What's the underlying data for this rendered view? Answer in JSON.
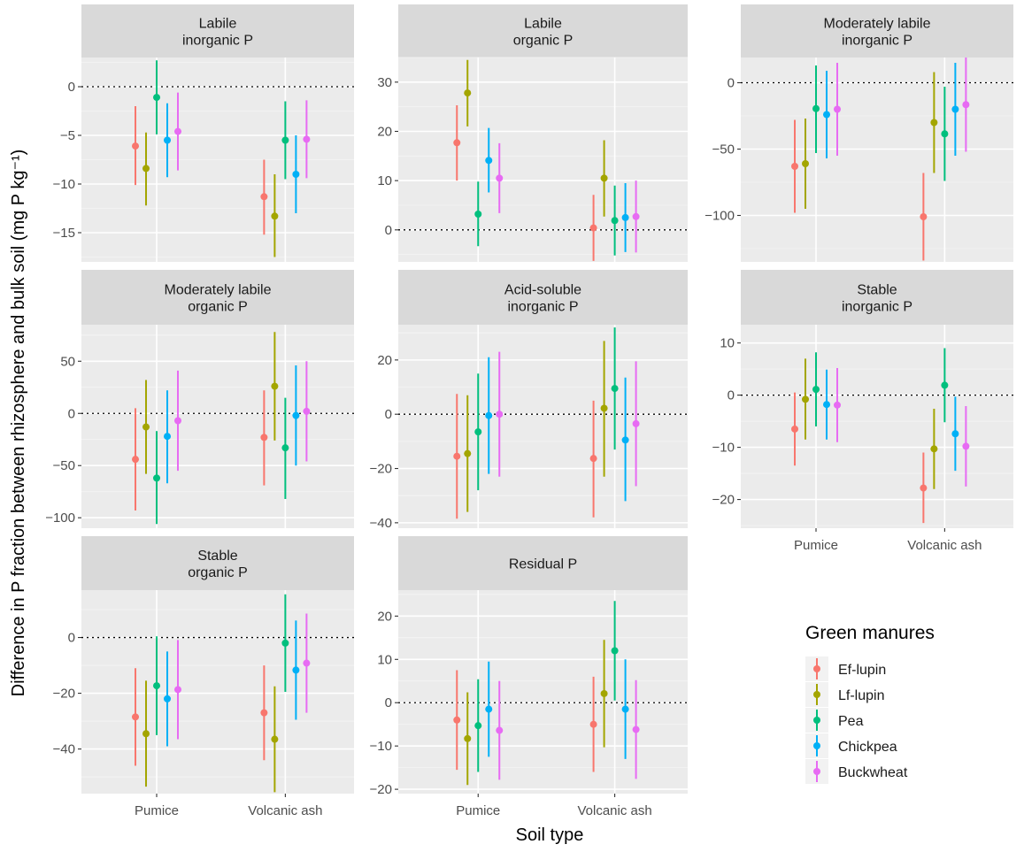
{
  "chart_data": {
    "type": "errorbar-facets",
    "xlabel": "Soil type",
    "ylabel": "Difference in P fraction between rhizosphere and bulk soil (mg P  kg⁻¹)",
    "categories": [
      "Pumice",
      "Volcanic ash"
    ],
    "legend": {
      "title": "Green manures",
      "position": "bottom-right",
      "entries": [
        {
          "name": "Ef-lupin",
          "color": "#F8766D"
        },
        {
          "name": "Lf-lupin",
          "color": "#A3A500"
        },
        {
          "name": "Pea",
          "color": "#00BF7D"
        },
        {
          "name": "Chickpea",
          "color": "#00B0F6"
        },
        {
          "name": "Buckwheat",
          "color": "#E76BF3"
        }
      ]
    },
    "panels": [
      {
        "title": [
          "Labile",
          "inorganic P"
        ],
        "ylim": [
          -18,
          3
        ],
        "yticks": [
          0,
          -5,
          -10,
          -15
        ],
        "series": [
          {
            "name": "Ef-lupin",
            "mean": [
              -6.1,
              -11.3
            ],
            "lo": [
              -10.1,
              -15.2
            ],
            "hi": [
              -2,
              -7.5
            ]
          },
          {
            "name": "Lf-lupin",
            "mean": [
              -8.4,
              -13.3
            ],
            "lo": [
              -12.2,
              -17.5
            ],
            "hi": [
              -4.7,
              -9
            ]
          },
          {
            "name": "Pea",
            "mean": [
              -1.1,
              -5.5
            ],
            "lo": [
              -4.9,
              -9.5
            ],
            "hi": [
              2.7,
              -1.5
            ]
          },
          {
            "name": "Chickpea",
            "mean": [
              -5.5,
              -9
            ],
            "lo": [
              -9.3,
              -13
            ],
            "hi": [
              -1.7,
              -5
            ]
          },
          {
            "name": "Buckwheat",
            "mean": [
              -4.6,
              -5.4
            ],
            "lo": [
              -8.6,
              -9.4
            ],
            "hi": [
              -0.6,
              -1.4
            ]
          }
        ]
      },
      {
        "title": [
          "Labile",
          "organic P"
        ],
        "ylim": [
          -6.5,
          35
        ],
        "yticks": [
          30,
          20,
          10,
          0
        ],
        "series": [
          {
            "name": "Ef-lupin",
            "mean": [
              17.7,
              0.4
            ],
            "lo": [
              10,
              -6.3
            ],
            "hi": [
              25.3,
              7.1
            ]
          },
          {
            "name": "Lf-lupin",
            "mean": [
              27.8,
              10.5
            ],
            "lo": [
              21,
              2.7
            ],
            "hi": [
              34.5,
              18.2
            ]
          },
          {
            "name": "Pea",
            "mean": [
              3.2,
              1.9
            ],
            "lo": [
              -3.3,
              -5.2
            ],
            "hi": [
              9.8,
              9
            ]
          },
          {
            "name": "Chickpea",
            "mean": [
              14.1,
              2.5
            ],
            "lo": [
              7.6,
              -4.5
            ],
            "hi": [
              20.7,
              9.5
            ]
          },
          {
            "name": "Buckwheat",
            "mean": [
              10.5,
              2.7
            ],
            "lo": [
              3.4,
              -4.6
            ],
            "hi": [
              17.6,
              10
            ]
          }
        ]
      },
      {
        "title": [
          "Moderately labile",
          "inorganic P"
        ],
        "ylim": [
          -135,
          19
        ],
        "yticks": [
          0,
          -50,
          -100
        ],
        "series": [
          {
            "name": "Ef-lupin",
            "mean": [
              -63,
              -101
            ],
            "lo": [
              -98,
              -134
            ],
            "hi": [
              -28,
              -68
            ]
          },
          {
            "name": "Lf-lupin",
            "mean": [
              -61,
              -30
            ],
            "lo": [
              -95,
              -68
            ],
            "hi": [
              -27,
              8
            ]
          },
          {
            "name": "Pea",
            "mean": [
              -19.5,
              -38.5
            ],
            "lo": [
              -53,
              -74
            ],
            "hi": [
              13,
              -3
            ]
          },
          {
            "name": "Chickpea",
            "mean": [
              -24,
              -20
            ],
            "lo": [
              -57,
              -55
            ],
            "hi": [
              9,
              15
            ]
          },
          {
            "name": "Buckwheat",
            "mean": [
              -20,
              -16.5
            ],
            "lo": [
              -55,
              -52
            ],
            "hi": [
              15,
              19
            ]
          }
        ]
      },
      {
        "title": [
          "Moderately labile",
          "organic P"
        ],
        "ylim": [
          -110,
          85
        ],
        "yticks": [
          50,
          0,
          -50,
          -100
        ],
        "series": [
          {
            "name": "Ef-lupin",
            "mean": [
              -44,
              -23
            ],
            "lo": [
              -93,
              -69
            ],
            "hi": [
              5,
              22
            ]
          },
          {
            "name": "Lf-lupin",
            "mean": [
              -13,
              26
            ],
            "lo": [
              -58,
              -26
            ],
            "hi": [
              32,
              78
            ]
          },
          {
            "name": "Pea",
            "mean": [
              -62,
              -33
            ],
            "lo": [
              -106,
              -82
            ],
            "hi": [
              -17,
              15
            ]
          },
          {
            "name": "Chickpea",
            "mean": [
              -22,
              -2
            ],
            "lo": [
              -67,
              -50
            ],
            "hi": [
              22,
              46
            ]
          },
          {
            "name": "Buckwheat",
            "mean": [
              -7,
              2
            ],
            "lo": [
              -55,
              -46
            ],
            "hi": [
              41,
              50
            ]
          }
        ]
      },
      {
        "title": [
          "Acid-soluble",
          "inorganic P"
        ],
        "ylim": [
          -42,
          33
        ],
        "yticks": [
          20,
          0,
          -20,
          -40
        ],
        "series": [
          {
            "name": "Ef-lupin",
            "mean": [
              -15.5,
              -16.3
            ],
            "lo": [
              -38.5,
              -38
            ],
            "hi": [
              7.5,
              5
            ]
          },
          {
            "name": "Lf-lupin",
            "mean": [
              -14.5,
              2.2
            ],
            "lo": [
              -36,
              -23
            ],
            "hi": [
              7,
              27
            ]
          },
          {
            "name": "Pea",
            "mean": [
              -6.5,
              9.5
            ],
            "lo": [
              -28,
              -13
            ],
            "hi": [
              15,
              32
            ]
          },
          {
            "name": "Chickpea",
            "mean": [
              -0.5,
              -9.5
            ],
            "lo": [
              -22,
              -32
            ],
            "hi": [
              21,
              13.5
            ]
          },
          {
            "name": "Buckwheat",
            "mean": [
              0,
              -3.5
            ],
            "lo": [
              -23,
              -26.5
            ],
            "hi": [
              23,
              19.5
            ]
          }
        ]
      },
      {
        "title": [
          "Stable",
          "inorganic P"
        ],
        "ylim": [
          -25.5,
          13.5
        ],
        "yticks": [
          10,
          0,
          -10,
          -20
        ],
        "series": [
          {
            "name": "Ef-lupin",
            "mean": [
              -6.5,
              -17.8
            ],
            "lo": [
              -13.5,
              -24.5
            ],
            "hi": [
              0.5,
              -11
            ]
          },
          {
            "name": "Lf-lupin",
            "mean": [
              -0.8,
              -10.3
            ],
            "lo": [
              -8.5,
              -18
            ],
            "hi": [
              7,
              -2.6
            ]
          },
          {
            "name": "Pea",
            "mean": [
              1.1,
              1.9
            ],
            "lo": [
              -6,
              -5.2
            ],
            "hi": [
              8.2,
              9
            ]
          },
          {
            "name": "Chickpea",
            "mean": [
              -1.8,
              -7.4
            ],
            "lo": [
              -8.5,
              -14.5
            ],
            "hi": [
              4.9,
              -0.3
            ]
          },
          {
            "name": "Buckwheat",
            "mean": [
              -1.9,
              -9.8
            ],
            "lo": [
              -9,
              -17.5
            ],
            "hi": [
              5.2,
              -2.1
            ]
          }
        ]
      },
      {
        "title": [
          "Stable",
          "organic P"
        ],
        "ylim": [
          -56,
          17
        ],
        "yticks": [
          0,
          -20,
          -40
        ],
        "series": [
          {
            "name": "Ef-lupin",
            "mean": [
              -28.5,
              -27
            ],
            "lo": [
              -46,
              -44
            ],
            "hi": [
              -11,
              -10
            ]
          },
          {
            "name": "Lf-lupin",
            "mean": [
              -34.5,
              -36.5
            ],
            "lo": [
              -53.5,
              -55.5
            ],
            "hi": [
              -15.5,
              -17.5
            ]
          },
          {
            "name": "Pea",
            "mean": [
              -17.3,
              -2
            ],
            "lo": [
              -35,
              -19.5
            ],
            "hi": [
              0.4,
              15.5
            ]
          },
          {
            "name": "Chickpea",
            "mean": [
              -22,
              -11.7
            ],
            "lo": [
              -39,
              -29.5
            ],
            "hi": [
              -5,
              6.1
            ]
          },
          {
            "name": "Buckwheat",
            "mean": [
              -18.7,
              -9.2
            ],
            "lo": [
              -36.5,
              -27
            ],
            "hi": [
              -0.9,
              8.6
            ]
          }
        ]
      },
      {
        "title": [
          "Residual P"
        ],
        "ylim": [
          -21,
          26
        ],
        "yticks": [
          20,
          10,
          0,
          -10,
          -20
        ],
        "series": [
          {
            "name": "Ef-lupin",
            "mean": [
              -4,
              -5
            ],
            "lo": [
              -15.5,
              -16
            ],
            "hi": [
              7.5,
              6
            ]
          },
          {
            "name": "Lf-lupin",
            "mean": [
              -8.3,
              2.1
            ],
            "lo": [
              -19,
              -10.3
            ],
            "hi": [
              2.4,
              14.5
            ]
          },
          {
            "name": "Pea",
            "mean": [
              -5.3,
              12
            ],
            "lo": [
              -16,
              0.5
            ],
            "hi": [
              5.4,
              23.5
            ]
          },
          {
            "name": "Chickpea",
            "mean": [
              -1.5,
              -1.5
            ],
            "lo": [
              -12.5,
              -13
            ],
            "hi": [
              9.5,
              10
            ]
          },
          {
            "name": "Buckwheat",
            "mean": [
              -6.4,
              -6.2
            ],
            "lo": [
              -17.8,
              -17.6
            ],
            "hi": [
              5,
              5.2
            ]
          }
        ]
      }
    ]
  }
}
